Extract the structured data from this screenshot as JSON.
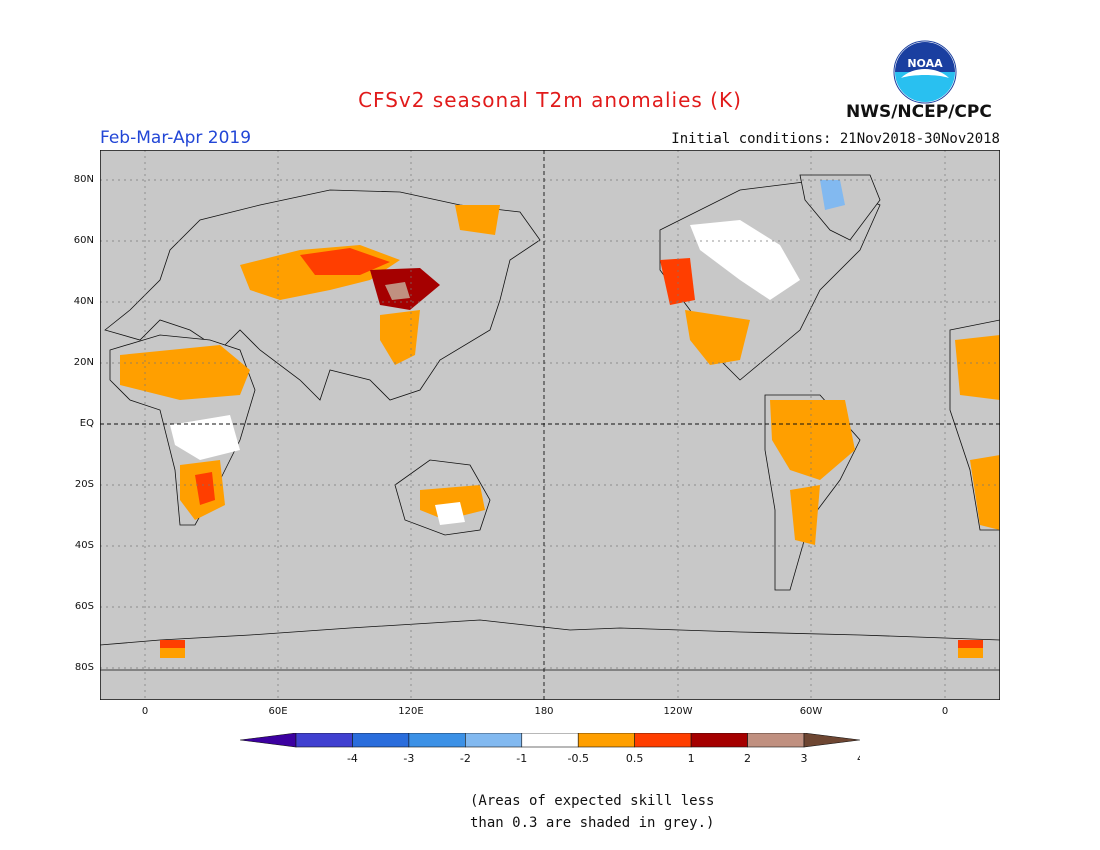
{
  "header": {
    "title": "CFSv2 seasonal T2m anomalies (K)",
    "period": "Feb-Mar-Apr 2019",
    "initial_conditions": "Initial conditions: 21Nov2018-30Nov2018",
    "agency": "NWS/NCEP/CPC",
    "logo_text": "NOAA"
  },
  "map": {
    "lat_labels": [
      "80N",
      "60N",
      "40N",
      "20N",
      "EQ",
      "20S",
      "40S",
      "60S",
      "80S"
    ],
    "lon_labels": [
      "0",
      "60E",
      "120E",
      "180",
      "120W",
      "60W",
      "0"
    ],
    "colors": {
      "ocean": "#c8c8c8",
      "near_normal": "#ffffff",
      "warm_0_5_1": "#ff9f00",
      "warm_1_2": "#ff3e00",
      "warm_2_3": "#a50000",
      "warm_3_4": "#c09080",
      "cool_1_0_5": "#82b9f0"
    }
  },
  "colorbar": {
    "ticks": [
      "-4",
      "-3",
      "-2",
      "-1",
      "-0.5",
      "0.5",
      "1",
      "2",
      "3",
      "4"
    ],
    "colors": [
      "#3c00a0",
      "#4040d0",
      "#2a6ddc",
      "#3c91e6",
      "#82b9f0",
      "#ffffff",
      "#ff9f00",
      "#ff3e00",
      "#a50000",
      "#c09080",
      "#6e4632"
    ]
  },
  "note": {
    "line1": "(Areas of expected skill less",
    "line2": "than 0.3 are shaded in grey.)"
  }
}
